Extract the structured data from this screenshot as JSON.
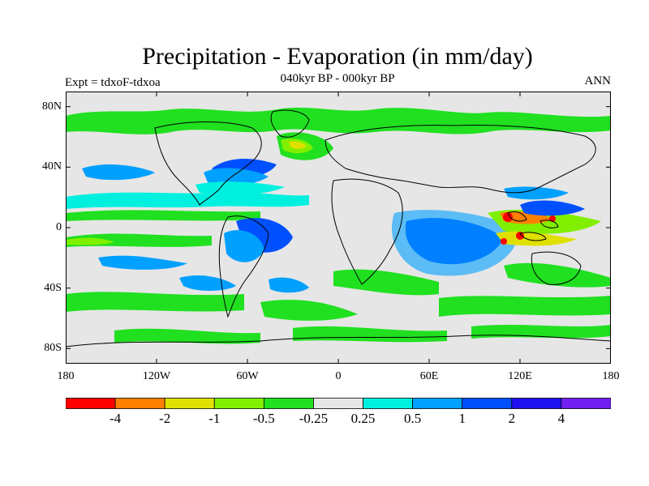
{
  "title": "Precipitation - Evaporation (in mm/day)",
  "subtitle": "040kyr BP - 000kyr BP",
  "left_label": "Expt = tdxoF-tdxoa",
  "right_label": "ANN",
  "map": {
    "projection": "cylindrical-equidistant",
    "lon_range": [
      -180,
      180
    ],
    "lat_range": [
      -90,
      90
    ],
    "background_color": "#e6e6e6",
    "coastline_color": "#000000",
    "lat_ticks": [
      {
        "value": 80,
        "label": "80N"
      },
      {
        "value": 40,
        "label": "40N"
      },
      {
        "value": 0,
        "label": "0"
      },
      {
        "value": -40,
        "label": "40S"
      },
      {
        "value": -80,
        "label": "80S"
      }
    ],
    "lon_ticks": [
      {
        "value": -180,
        "label": "180"
      },
      {
        "value": -120,
        "label": "120W"
      },
      {
        "value": -60,
        "label": "60W"
      },
      {
        "value": 0,
        "label": "0"
      },
      {
        "value": 60,
        "label": "60E"
      },
      {
        "value": 120,
        "label": "120E"
      },
      {
        "value": 180,
        "label": "180"
      }
    ]
  },
  "colorbar": {
    "colors": [
      "#ff0000",
      "#ff8000",
      "#e0e000",
      "#80f000",
      "#20e020",
      "#e6e6e6",
      "#00f0e0",
      "#00a0ff",
      "#0050ff",
      "#1f10f0",
      "#7020f0"
    ],
    "labels": [
      "-4",
      "-2",
      "-1",
      "-0.5",
      "-0.25",
      "0.25",
      "0.5",
      "1",
      "2",
      "4"
    ]
  }
}
